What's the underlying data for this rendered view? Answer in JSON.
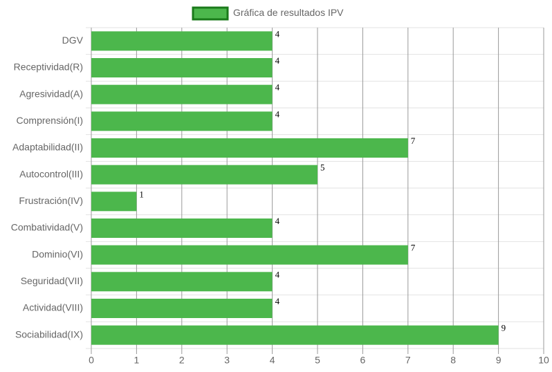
{
  "chart_data": {
    "type": "bar",
    "orientation": "horizontal",
    "categories": [
      "DGV",
      "Receptividad(R)",
      "Agresividad(A)",
      "Comprensión(I)",
      "Adaptabilidad(II)",
      "Autocontrol(III)",
      "Frustración(IV)",
      "Combatividad(V)",
      "Dominio(VI)",
      "Seguridad(VII)",
      "Actividad(VIII)",
      "Sociabilidad(IX)"
    ],
    "series": [
      {
        "name": "Gráfica de resultados IPV",
        "color": "#4cb74c",
        "border_color": "#1a7a1a",
        "values": [
          4,
          4,
          4,
          4,
          7,
          5,
          1,
          4,
          7,
          4,
          4,
          9
        ]
      }
    ],
    "xlim": [
      0,
      10
    ],
    "xticks": [
      0,
      1,
      2,
      3,
      4,
      5,
      6,
      7,
      8,
      9,
      10
    ],
    "grid": true,
    "legend": "top"
  }
}
